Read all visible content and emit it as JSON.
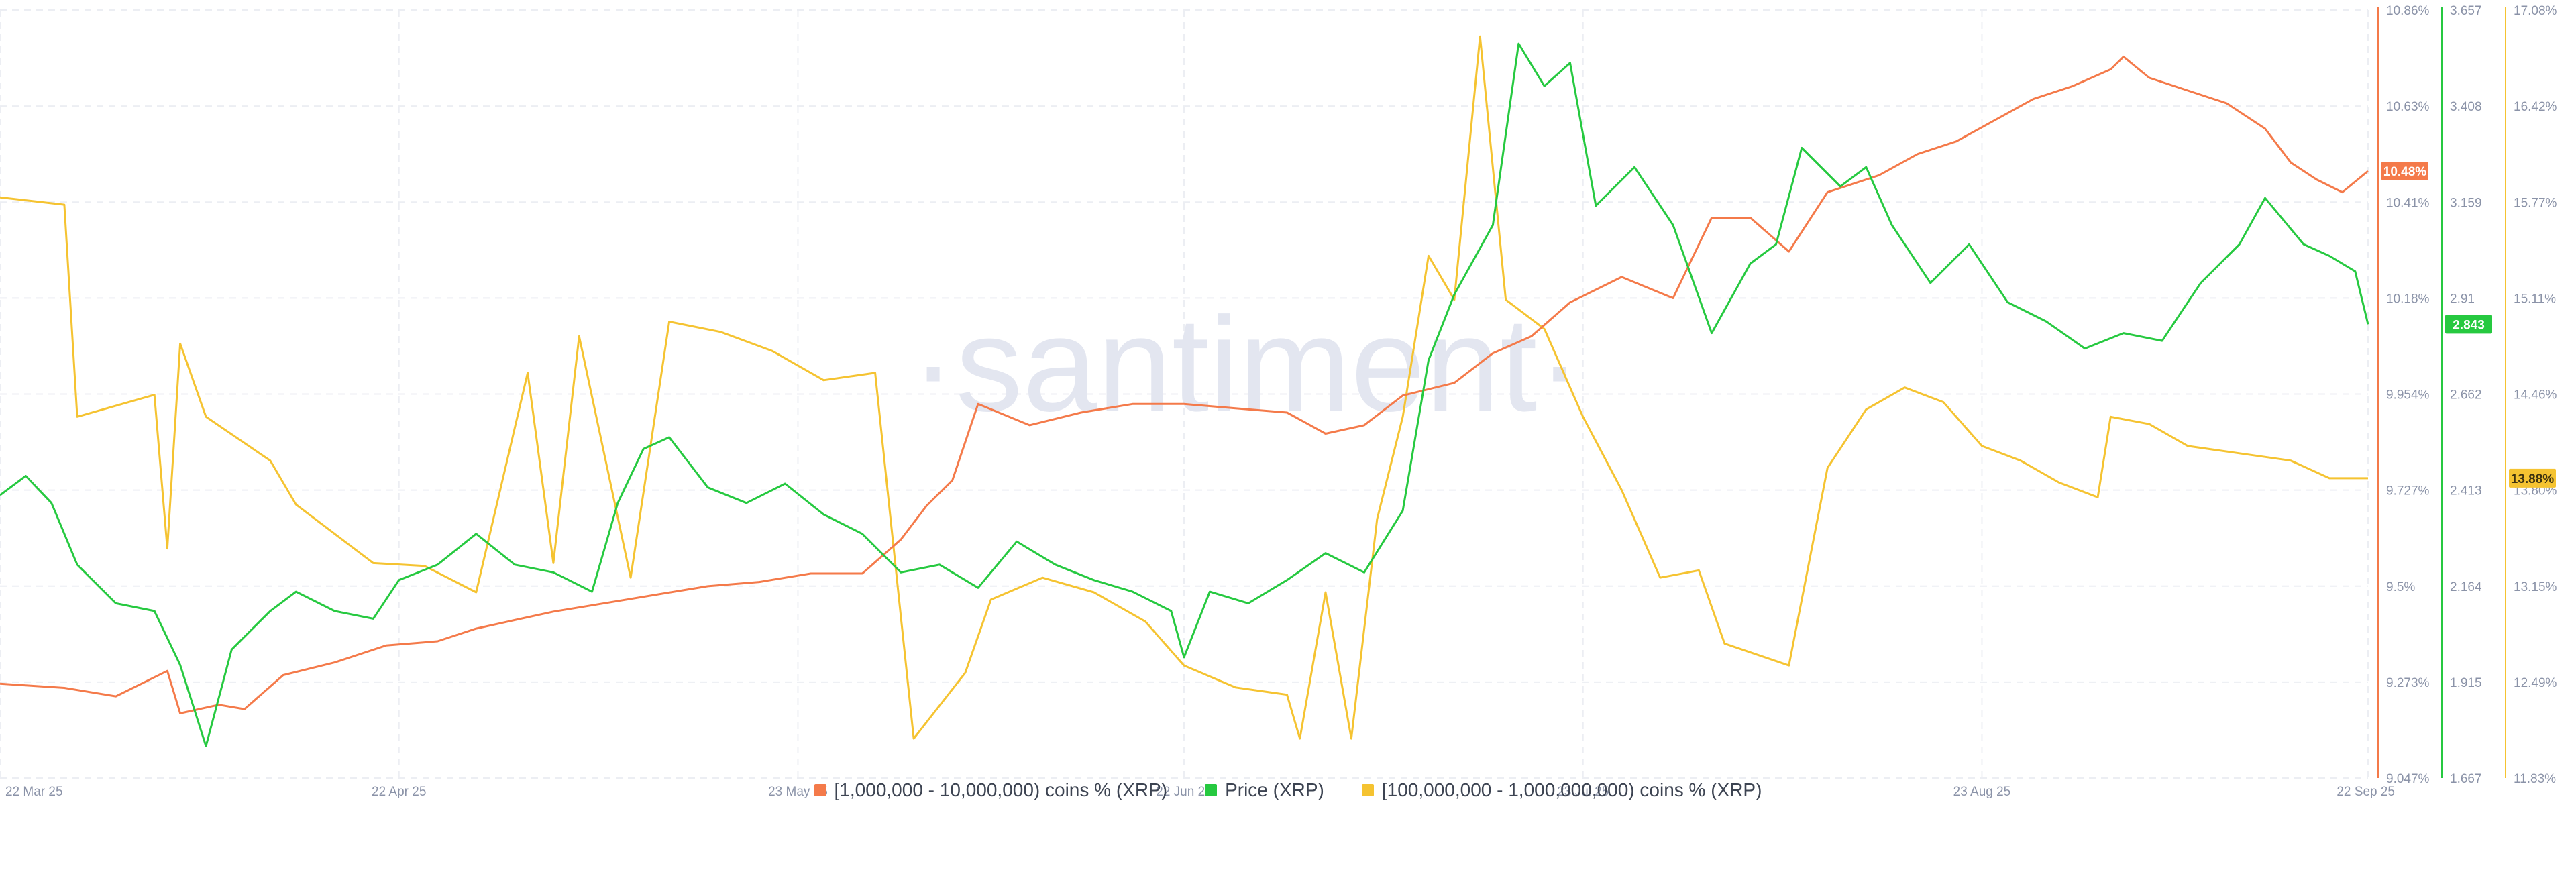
{
  "watermark": "·santiment·",
  "chart_data": {
    "type": "line",
    "x_ticks": [
      "22 Mar 25",
      "22 Apr 25",
      "23 May 25",
      "22 Jun 25",
      "23 Jul 25",
      "23 Aug 25",
      "22 Sep 25"
    ],
    "x_range": [
      "2025-03-22",
      "2025-09-22"
    ],
    "axes": {
      "orange": {
        "ticks": [
          "10.86%",
          "10.63%",
          "10.41%",
          "10.18%",
          "9.954%",
          "9.727%",
          "9.5%",
          "9.273%",
          "9.047%"
        ],
        "ylim": [
          9.047,
          10.86
        ],
        "color": "#f47a4a"
      },
      "green": {
        "ticks": [
          "3.657",
          "3.408",
          "3.159",
          "2.91",
          "2.662",
          "2.413",
          "2.164",
          "1.915",
          "1.667"
        ],
        "ylim": [
          1.667,
          3.657
        ],
        "color": "#26c940"
      },
      "yellow": {
        "ticks": [
          "17.08%",
          "16.42%",
          "15.77%",
          "15.11%",
          "14.46%",
          "13.80%",
          "13.15%",
          "12.49%",
          "11.83%"
        ],
        "ylim": [
          11.83,
          17.08
        ],
        "color": "#f5c331"
      }
    },
    "series": [
      {
        "name": "[1,000,000 - 10,000,000) coins % (XRP)",
        "axis": "orange",
        "current_label": "10.48%",
        "points": [
          [
            "2025-03-22",
            9.27
          ],
          [
            "2025-03-27",
            9.26
          ],
          [
            "2025-03-31",
            9.24
          ],
          [
            "2025-04-04",
            9.3
          ],
          [
            "2025-04-05",
            9.2
          ],
          [
            "2025-04-08",
            9.22
          ],
          [
            "2025-04-10",
            9.21
          ],
          [
            "2025-04-13",
            9.29
          ],
          [
            "2025-04-17",
            9.32
          ],
          [
            "2025-04-21",
            9.36
          ],
          [
            "2025-04-25",
            9.37
          ],
          [
            "2025-04-28",
            9.4
          ],
          [
            "2025-05-01",
            9.42
          ],
          [
            "2025-05-04",
            9.44
          ],
          [
            "2025-05-08",
            9.46
          ],
          [
            "2025-05-12",
            9.48
          ],
          [
            "2025-05-16",
            9.5
          ],
          [
            "2025-05-20",
            9.51
          ],
          [
            "2025-05-24",
            9.53
          ],
          [
            "2025-05-28",
            9.53
          ],
          [
            "2025-05-31",
            9.61
          ],
          [
            "2025-06-02",
            9.69
          ],
          [
            "2025-06-04",
            9.75
          ],
          [
            "2025-06-06",
            9.93
          ],
          [
            "2025-06-10",
            9.88
          ],
          [
            "2025-06-14",
            9.91
          ],
          [
            "2025-06-18",
            9.93
          ],
          [
            "2025-06-22",
            9.93
          ],
          [
            "2025-06-26",
            9.92
          ],
          [
            "2025-06-30",
            9.91
          ],
          [
            "2025-07-03",
            9.86
          ],
          [
            "2025-07-06",
            9.88
          ],
          [
            "2025-07-09",
            9.95
          ],
          [
            "2025-07-13",
            9.98
          ],
          [
            "2025-07-16",
            10.05
          ],
          [
            "2025-07-19",
            10.09
          ],
          [
            "2025-07-22",
            10.17
          ],
          [
            "2025-07-26",
            10.23
          ],
          [
            "2025-07-30",
            10.18
          ],
          [
            "2025-08-02",
            10.37
          ],
          [
            "2025-08-05",
            10.37
          ],
          [
            "2025-08-08",
            10.29
          ],
          [
            "2025-08-11",
            10.43
          ],
          [
            "2025-08-13",
            10.45
          ],
          [
            "2025-08-15",
            10.47
          ],
          [
            "2025-08-18",
            10.52
          ],
          [
            "2025-08-21",
            10.55
          ],
          [
            "2025-08-24",
            10.6
          ],
          [
            "2025-08-27",
            10.65
          ],
          [
            "2025-08-30",
            10.68
          ],
          [
            "2025-09-02",
            10.72
          ],
          [
            "2025-09-03",
            10.75
          ],
          [
            "2025-09-05",
            10.7
          ],
          [
            "2025-09-08",
            10.67
          ],
          [
            "2025-09-11",
            10.64
          ],
          [
            "2025-09-14",
            10.58
          ],
          [
            "2025-09-16",
            10.5
          ],
          [
            "2025-09-18",
            10.46
          ],
          [
            "2025-09-20",
            10.43
          ],
          [
            "2025-09-22",
            10.48
          ]
        ]
      },
      {
        "name": "Price (XRP)",
        "axis": "green",
        "current_label": "2.843",
        "points": [
          [
            "2025-03-22",
            2.4
          ],
          [
            "2025-03-24",
            2.45
          ],
          [
            "2025-03-26",
            2.38
          ],
          [
            "2025-03-28",
            2.22
          ],
          [
            "2025-03-31",
            2.12
          ],
          [
            "2025-04-03",
            2.1
          ],
          [
            "2025-04-05",
            1.96
          ],
          [
            "2025-04-07",
            1.75
          ],
          [
            "2025-04-09",
            2.0
          ],
          [
            "2025-04-12",
            2.1
          ],
          [
            "2025-04-14",
            2.15
          ],
          [
            "2025-04-17",
            2.1
          ],
          [
            "2025-04-20",
            2.08
          ],
          [
            "2025-04-22",
            2.18
          ],
          [
            "2025-04-25",
            2.22
          ],
          [
            "2025-04-28",
            2.3
          ],
          [
            "2025-05-01",
            2.22
          ],
          [
            "2025-05-04",
            2.2
          ],
          [
            "2025-05-07",
            2.15
          ],
          [
            "2025-05-09",
            2.38
          ],
          [
            "2025-05-11",
            2.52
          ],
          [
            "2025-05-13",
            2.55
          ],
          [
            "2025-05-16",
            2.42
          ],
          [
            "2025-05-19",
            2.38
          ],
          [
            "2025-05-22",
            2.43
          ],
          [
            "2025-05-25",
            2.35
          ],
          [
            "2025-05-28",
            2.3
          ],
          [
            "2025-05-31",
            2.2
          ],
          [
            "2025-06-03",
            2.22
          ],
          [
            "2025-06-06",
            2.16
          ],
          [
            "2025-06-09",
            2.28
          ],
          [
            "2025-06-12",
            2.22
          ],
          [
            "2025-06-15",
            2.18
          ],
          [
            "2025-06-18",
            2.15
          ],
          [
            "2025-06-21",
            2.1
          ],
          [
            "2025-06-22",
            1.98
          ],
          [
            "2025-06-24",
            2.15
          ],
          [
            "2025-06-27",
            2.12
          ],
          [
            "2025-06-30",
            2.18
          ],
          [
            "2025-07-03",
            2.25
          ],
          [
            "2025-07-06",
            2.2
          ],
          [
            "2025-07-09",
            2.36
          ],
          [
            "2025-07-11",
            2.75
          ],
          [
            "2025-07-13",
            2.92
          ],
          [
            "2025-07-16",
            3.1
          ],
          [
            "2025-07-18",
            3.57
          ],
          [
            "2025-07-20",
            3.46
          ],
          [
            "2025-07-22",
            3.52
          ],
          [
            "2025-07-24",
            3.15
          ],
          [
            "2025-07-27",
            3.25
          ],
          [
            "2025-07-30",
            3.1
          ],
          [
            "2025-08-02",
            2.82
          ],
          [
            "2025-08-05",
            3.0
          ],
          [
            "2025-08-07",
            3.05
          ],
          [
            "2025-08-09",
            3.3
          ],
          [
            "2025-08-12",
            3.2
          ],
          [
            "2025-08-14",
            3.25
          ],
          [
            "2025-08-16",
            3.1
          ],
          [
            "2025-08-19",
            2.95
          ],
          [
            "2025-08-22",
            3.05
          ],
          [
            "2025-08-25",
            2.9
          ],
          [
            "2025-08-28",
            2.85
          ],
          [
            "2025-08-31",
            2.78
          ],
          [
            "2025-09-03",
            2.82
          ],
          [
            "2025-09-06",
            2.8
          ],
          [
            "2025-09-09",
            2.95
          ],
          [
            "2025-09-12",
            3.05
          ],
          [
            "2025-09-14",
            3.17
          ],
          [
            "2025-09-17",
            3.05
          ],
          [
            "2025-09-19",
            3.02
          ],
          [
            "2025-09-21",
            2.98
          ],
          [
            "2025-09-22",
            2.843
          ]
        ]
      },
      {
        "name": "[100,000,000 - 1,000,000,000) coins % (XRP)",
        "axis": "yellow",
        "current_label": "13.88%",
        "points": [
          [
            "2025-03-22",
            15.8
          ],
          [
            "2025-03-27",
            15.75
          ],
          [
            "2025-03-28",
            14.3
          ],
          [
            "2025-04-03",
            14.45
          ],
          [
            "2025-04-04",
            13.4
          ],
          [
            "2025-04-05",
            14.8
          ],
          [
            "2025-04-07",
            14.3
          ],
          [
            "2025-04-12",
            14.0
          ],
          [
            "2025-04-14",
            13.7
          ],
          [
            "2025-04-20",
            13.3
          ],
          [
            "2025-04-24",
            13.28
          ],
          [
            "2025-04-28",
            13.1
          ],
          [
            "2025-05-02",
            14.6
          ],
          [
            "2025-05-04",
            13.3
          ],
          [
            "2025-05-06",
            14.85
          ],
          [
            "2025-05-10",
            13.2
          ],
          [
            "2025-05-13",
            14.95
          ],
          [
            "2025-05-17",
            14.88
          ],
          [
            "2025-05-21",
            14.75
          ],
          [
            "2025-05-25",
            14.55
          ],
          [
            "2025-05-29",
            14.6
          ],
          [
            "2025-06-01",
            12.1
          ],
          [
            "2025-06-05",
            12.55
          ],
          [
            "2025-06-07",
            13.05
          ],
          [
            "2025-06-11",
            13.2
          ],
          [
            "2025-06-15",
            13.1
          ],
          [
            "2025-06-19",
            12.9
          ],
          [
            "2025-06-22",
            12.6
          ],
          [
            "2025-06-26",
            12.45
          ],
          [
            "2025-06-30",
            12.4
          ],
          [
            "2025-07-01",
            12.1
          ],
          [
            "2025-07-03",
            13.1
          ],
          [
            "2025-07-05",
            12.1
          ],
          [
            "2025-07-07",
            13.6
          ],
          [
            "2025-07-09",
            14.3
          ],
          [
            "2025-07-11",
            15.4
          ],
          [
            "2025-07-13",
            15.1
          ],
          [
            "2025-07-15",
            16.9
          ],
          [
            "2025-07-17",
            15.1
          ],
          [
            "2025-07-20",
            14.9
          ],
          [
            "2025-07-23",
            14.3
          ],
          [
            "2025-07-26",
            13.8
          ],
          [
            "2025-07-29",
            13.2
          ],
          [
            "2025-08-01",
            13.25
          ],
          [
            "2025-08-03",
            12.75
          ],
          [
            "2025-08-08",
            12.6
          ],
          [
            "2025-08-11",
            13.95
          ],
          [
            "2025-08-14",
            14.35
          ],
          [
            "2025-08-17",
            14.5
          ],
          [
            "2025-08-20",
            14.4
          ],
          [
            "2025-08-23",
            14.1
          ],
          [
            "2025-08-26",
            14.0
          ],
          [
            "2025-08-29",
            13.85
          ],
          [
            "2025-09-01",
            13.75
          ],
          [
            "2025-09-02",
            14.3
          ],
          [
            "2025-09-05",
            14.25
          ],
          [
            "2025-09-08",
            14.1
          ],
          [
            "2025-09-12",
            14.05
          ],
          [
            "2025-09-16",
            14.0
          ],
          [
            "2025-09-19",
            13.88
          ],
          [
            "2025-09-22",
            13.88
          ]
        ]
      }
    ]
  }
}
